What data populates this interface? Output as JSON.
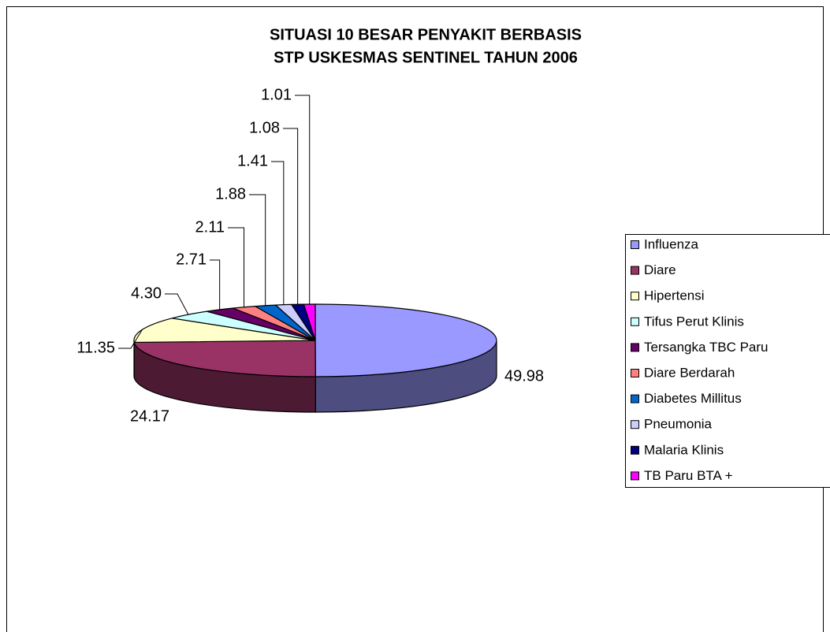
{
  "chart_data": {
    "type": "pie3d",
    "title": [
      "SITUASI 10 BESAR PENYAKIT BERBASIS",
      "STP USKESMAS SENTINEL TAHUN 2006"
    ],
    "categories": [
      "Influenza",
      "Diare",
      "Hipertensi",
      "Tifus Perut Klinis",
      "Tersangka TBC Paru",
      "Diare Berdarah",
      "Diabetes Millitus",
      "Pneumonia",
      "Malaria Klinis",
      "TB Paru BTA +"
    ],
    "values": [
      49.98,
      24.17,
      11.35,
      4.3,
      2.71,
      2.11,
      1.88,
      1.41,
      1.08,
      1.01
    ],
    "value_labels": [
      "49.98",
      "24.17",
      "11.35",
      "4.30",
      "2.71",
      "2.11",
      "1.88",
      "1.41",
      "1.08",
      "1.01"
    ],
    "colors": [
      "#9999ff",
      "#993366",
      "#ffffcc",
      "#ccffff",
      "#660066",
      "#ff8080",
      "#0066cc",
      "#ccccff",
      "#000080",
      "#ff00ff"
    ],
    "legend": "right"
  }
}
